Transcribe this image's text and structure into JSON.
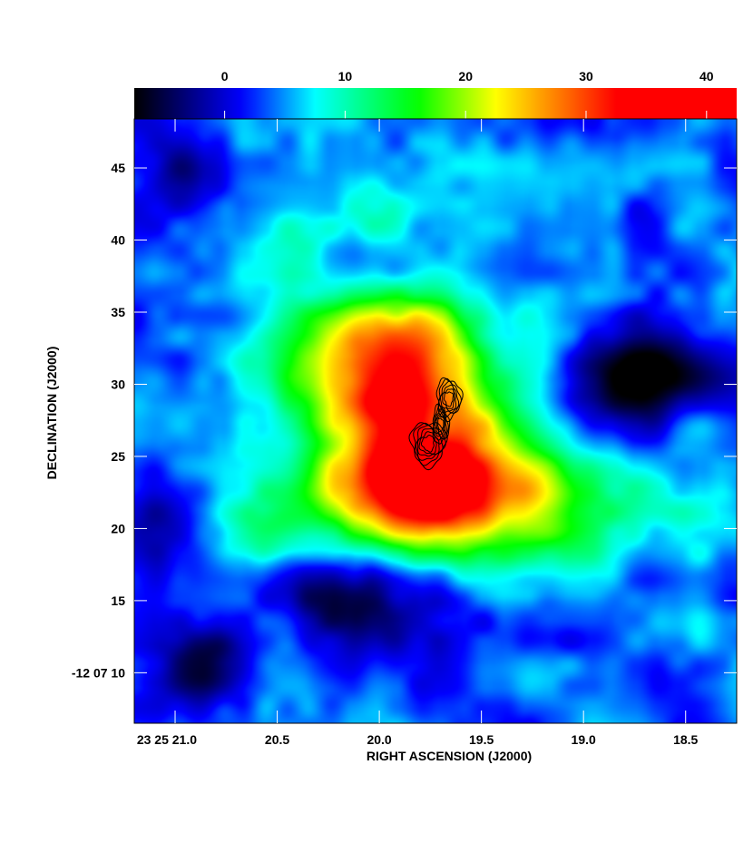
{
  "chart_data": {
    "type": "heatmap",
    "title": "",
    "xlabel": "RIGHT ASCENSION (J2000)",
    "ylabel": "DECLINATION (J2000)",
    "colorbar": {
      "ticks": [
        0,
        10,
        20,
        30,
        40
      ],
      "range": [
        -7.5,
        42.5
      ],
      "colormap": [
        "#000000",
        "#0000ff",
        "#00ffff",
        "#00ff00",
        "#ffff00",
        "#ff0000"
      ]
    },
    "x_axis": {
      "range": [
        21.2,
        18.25
      ],
      "ticks": [
        21.0,
        20.5,
        20.0,
        19.5,
        19.0,
        18.5
      ],
      "tick_labels": [
        "23 25 21.0",
        "20.5",
        "20.0",
        "19.5",
        "19.0",
        "18.5"
      ]
    },
    "y_axis": {
      "range": [
        48.4,
        6.5
      ],
      "ticks": [
        10,
        15,
        20,
        25,
        30,
        35,
        40,
        45
      ],
      "tick_labels": [
        "-12 07 10",
        "15",
        "20",
        "25",
        "30",
        "35",
        "40",
        "45"
      ]
    },
    "background_level": 4,
    "emission_components": [
      {
        "ra": 19.76,
        "dec": 23.0,
        "sigma_ra": 0.3,
        "sigma_dec": 3.0,
        "amplitude": 22
      },
      {
        "ra": 19.88,
        "dec": 29.8,
        "sigma_ra": 0.32,
        "sigma_dec": 3.0,
        "amplitude": 24
      },
      {
        "ra": 19.55,
        "dec": 23.5,
        "sigma_ra": 0.3,
        "sigma_dec": 2.2,
        "amplitude": 8
      },
      {
        "ra": 19.35,
        "dec": 21.0,
        "sigma_ra": 0.45,
        "sigma_dec": 3.2,
        "amplitude": 9
      },
      {
        "ra": 20.1,
        "dec": 31.8,
        "sigma_ra": 0.38,
        "sigma_dec": 3.4,
        "amplitude": 9
      },
      {
        "ra": 20.25,
        "dec": 22.5,
        "sigma_ra": 0.35,
        "sigma_dec": 2.5,
        "amplitude": 7
      },
      {
        "ra": 19.95,
        "dec": 34.5,
        "sigma_ra": 0.4,
        "sigma_dec": 2.2,
        "amplitude": 6
      },
      {
        "ra": 20.62,
        "dec": 19.5,
        "sigma_ra": 0.15,
        "sigma_dec": 1.5,
        "amplitude": 6
      },
      {
        "ra": 20.86,
        "dec": 10.6,
        "sigma_ra": 0.15,
        "sigma_dec": 2.0,
        "amplitude": -10
      },
      {
        "ra": 20.15,
        "dec": 14.5,
        "sigma_ra": 0.25,
        "sigma_dec": 2.5,
        "amplitude": -11
      },
      {
        "ra": 18.72,
        "dec": 30.5,
        "sigma_ra": 0.28,
        "sigma_dec": 2.5,
        "amplitude": -12
      },
      {
        "ra": 21.0,
        "dec": 20.5,
        "sigma_ra": 0.15,
        "sigma_dec": 2.5,
        "amplitude": -6
      },
      {
        "ra": 20.98,
        "dec": 44.5,
        "sigma_ra": 0.2,
        "sigma_dec": 2.0,
        "amplitude": -6
      },
      {
        "ra": 19.0,
        "dec": 20.0,
        "sigma_ra": 0.22,
        "sigma_dec": 2.2,
        "amplitude": 4
      },
      {
        "ra": 20.4,
        "dec": 40.0,
        "sigma_ra": 0.15,
        "sigma_dec": 2.0,
        "amplitude": 4
      },
      {
        "ra": 20.05,
        "dec": 42.0,
        "sigma_ra": 0.12,
        "sigma_dec": 1.5,
        "amplitude": 4
      },
      {
        "ra": 18.45,
        "dec": 22.0,
        "sigma_ra": 0.15,
        "sigma_dec": 3.0,
        "amplitude": 3
      }
    ],
    "contour_source": {
      "contour_levels": 6,
      "lobes": [
        {
          "ra": 19.76,
          "dec": 25.9,
          "a_ra": 0.085,
          "a_dec": 1.55
        },
        {
          "ra": 19.66,
          "dec": 29.0,
          "a_ra": 0.06,
          "a_dec": 1.4
        },
        {
          "ra": 19.7,
          "dec": 27.2,
          "a_ra": 0.04,
          "a_dec": 1.3
        }
      ]
    }
  }
}
